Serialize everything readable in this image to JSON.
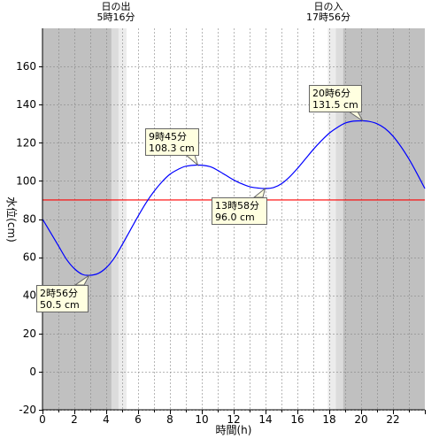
{
  "chart_data": {
    "type": "line",
    "xlabel": "時間(h)",
    "ylabel": "水位(cm)",
    "xlim": [
      0,
      24
    ],
    "ylim": [
      -20,
      180
    ],
    "x_ticks": [
      0,
      2,
      4,
      6,
      8,
      10,
      12,
      14,
      16,
      18,
      20,
      22
    ],
    "y_ticks": [
      -20,
      0,
      20,
      40,
      60,
      80,
      100,
      120,
      140,
      160
    ],
    "grid": true,
    "colors": {
      "night": "#c0c0c0",
      "twilight": "#dcdcdc",
      "twilight_light": "#ececec",
      "day": "#ffffff",
      "curve": "#0000ff",
      "reference": "#ff0000",
      "annotation_fill": "#ffffe0"
    },
    "sunrise": {
      "time": 5.267,
      "label_line1": "日の出",
      "label_line2": "5時16分"
    },
    "sunset": {
      "time": 17.933,
      "label_line1": "日の入",
      "label_line2": "17時56分"
    },
    "reference_line": {
      "y": 90
    },
    "series": [
      {
        "x": [
          0,
          0.5,
          1,
          1.5,
          2,
          2.5,
          2.93,
          3.5,
          4,
          4.5,
          5,
          5.5,
          6,
          6.5,
          7,
          7.5,
          8,
          8.5,
          9,
          9.75,
          10.5,
          11,
          11.5,
          12,
          12.5,
          13,
          13.5,
          13.97,
          14.5,
          15,
          15.5,
          16,
          16.5,
          17,
          17.5,
          18,
          18.5,
          19,
          19.5,
          20.1,
          20.5,
          21,
          21.5,
          22,
          22.5,
          23,
          23.5,
          24
        ],
        "values": [
          80,
          73,
          66,
          59,
          54,
          51,
          50.5,
          51.5,
          54.5,
          59.5,
          66.5,
          74,
          81.5,
          88.5,
          94.5,
          99.5,
          103.5,
          106,
          107.7,
          108.3,
          107.5,
          105.5,
          103,
          100.5,
          98.5,
          97,
          96.3,
          96.0,
          96.5,
          98.5,
          102,
          106.5,
          111.5,
          116.5,
          121,
          125,
          128,
          130.3,
          131.3,
          131.5,
          131.2,
          130,
          127.5,
          123.5,
          118,
          111.5,
          104,
          96
        ]
      }
    ],
    "annotations": [
      {
        "x": 2.93,
        "y": 50.5,
        "line1": "2時56分",
        "line2": "50.5 cm"
      },
      {
        "x": 9.75,
        "y": 108.3,
        "line1": "9時45分",
        "line2": "108.3 cm"
      },
      {
        "x": 13.97,
        "y": 96.0,
        "line1": "13時58分",
        "line2": "96.0 cm"
      },
      {
        "x": 20.1,
        "y": 131.5,
        "line1": "20時6分",
        "line2": "131.5 cm"
      }
    ]
  }
}
